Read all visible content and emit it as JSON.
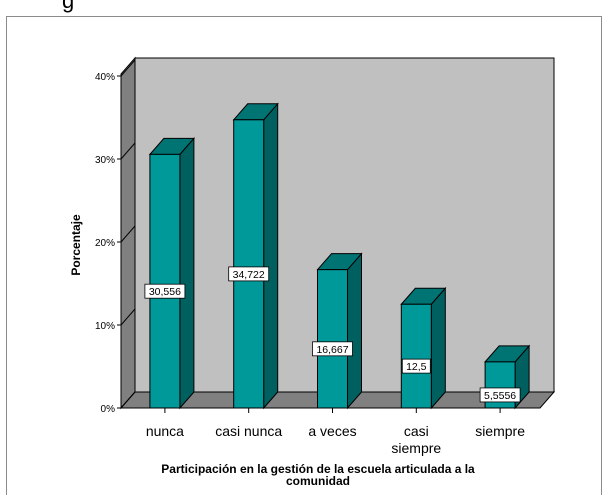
{
  "page": {
    "title_fragment": "g"
  },
  "chart_data": {
    "type": "bar",
    "categories": [
      "nunca",
      "casi nunca",
      "a veces",
      "casi\nsiempre",
      "siempre"
    ],
    "values": [
      30.556,
      34.722,
      16.667,
      12.5,
      5.5556
    ],
    "value_labels": [
      "30,556",
      "34,722",
      "16,667",
      "12,5",
      "5,5556"
    ],
    "ylabel": "Porcentaje",
    "xlabel": "Participación en la gestión de la escuela articulada a la comunidad",
    "ylim": [
      0,
      40
    ],
    "yticks": [
      0,
      10,
      20,
      30,
      40
    ],
    "ytick_labels": [
      "0%",
      "10%",
      "20%",
      "30%",
      "40%"
    ],
    "grid": false,
    "legend": "none",
    "style": "3d",
    "colors": {
      "bar_front": "#009999",
      "bar_side": "#006060",
      "bar_top": "#007373",
      "back_wall": "#c0c0c0",
      "left_wall": "#808080",
      "floor": "#808080"
    }
  }
}
